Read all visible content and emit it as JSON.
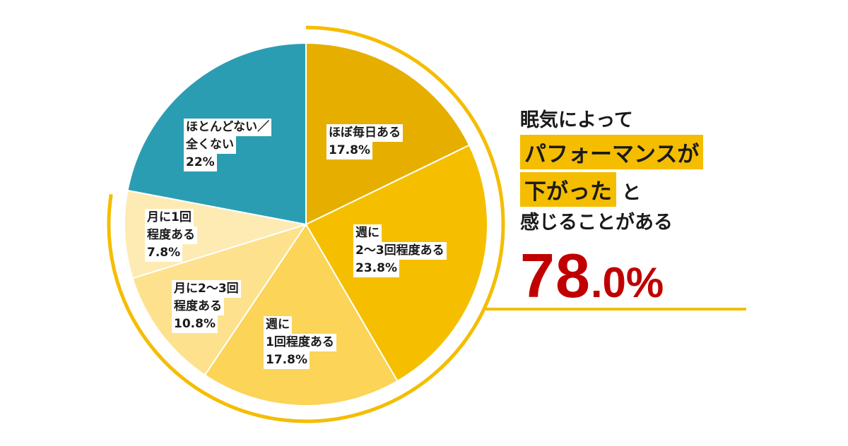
{
  "chart_data": {
    "type": "pie",
    "slices": [
      {
        "label_lines": [
          "ほぼ毎日ある"
        ],
        "value": 17.8,
        "value_text": "17.8%",
        "color": "#e6af00"
      },
      {
        "label_lines": [
          "週に",
          "2〜3回程度ある"
        ],
        "value": 23.8,
        "value_text": "23.8%",
        "color": "#f5bf00"
      },
      {
        "label_lines": [
          "週に",
          "1回程度ある"
        ],
        "value": 17.8,
        "value_text": "17.8%",
        "color": "#fbd458"
      },
      {
        "label_lines": [
          "月に2〜3回",
          "程度ある"
        ],
        "value": 10.8,
        "value_text": "10.8%",
        "color": "#fde18d"
      },
      {
        "label_lines": [
          "月に1回",
          "程度ある"
        ],
        "value": 7.8,
        "value_text": "7.8%",
        "color": "#fdebb3"
      },
      {
        "label_lines": [
          "ほとんどない／",
          "全くない"
        ],
        "value": 22,
        "value_text": "22%",
        "color": "#2a9db3"
      }
    ],
    "start_angle_deg": 0,
    "direction": "clockwise"
  },
  "headline": {
    "line1": "眠気によって",
    "line2_highlight": "パフォーマンスが",
    "line3_highlight": "下がった",
    "line3_plain": "と",
    "line4": "感じることがある"
  },
  "summary": {
    "percent_int": "78",
    "percent_dec": ".0%"
  },
  "colors": {
    "highlight": "#f5bd00",
    "accent_arc": "#f5bd00",
    "percent_text": "#c00000"
  }
}
